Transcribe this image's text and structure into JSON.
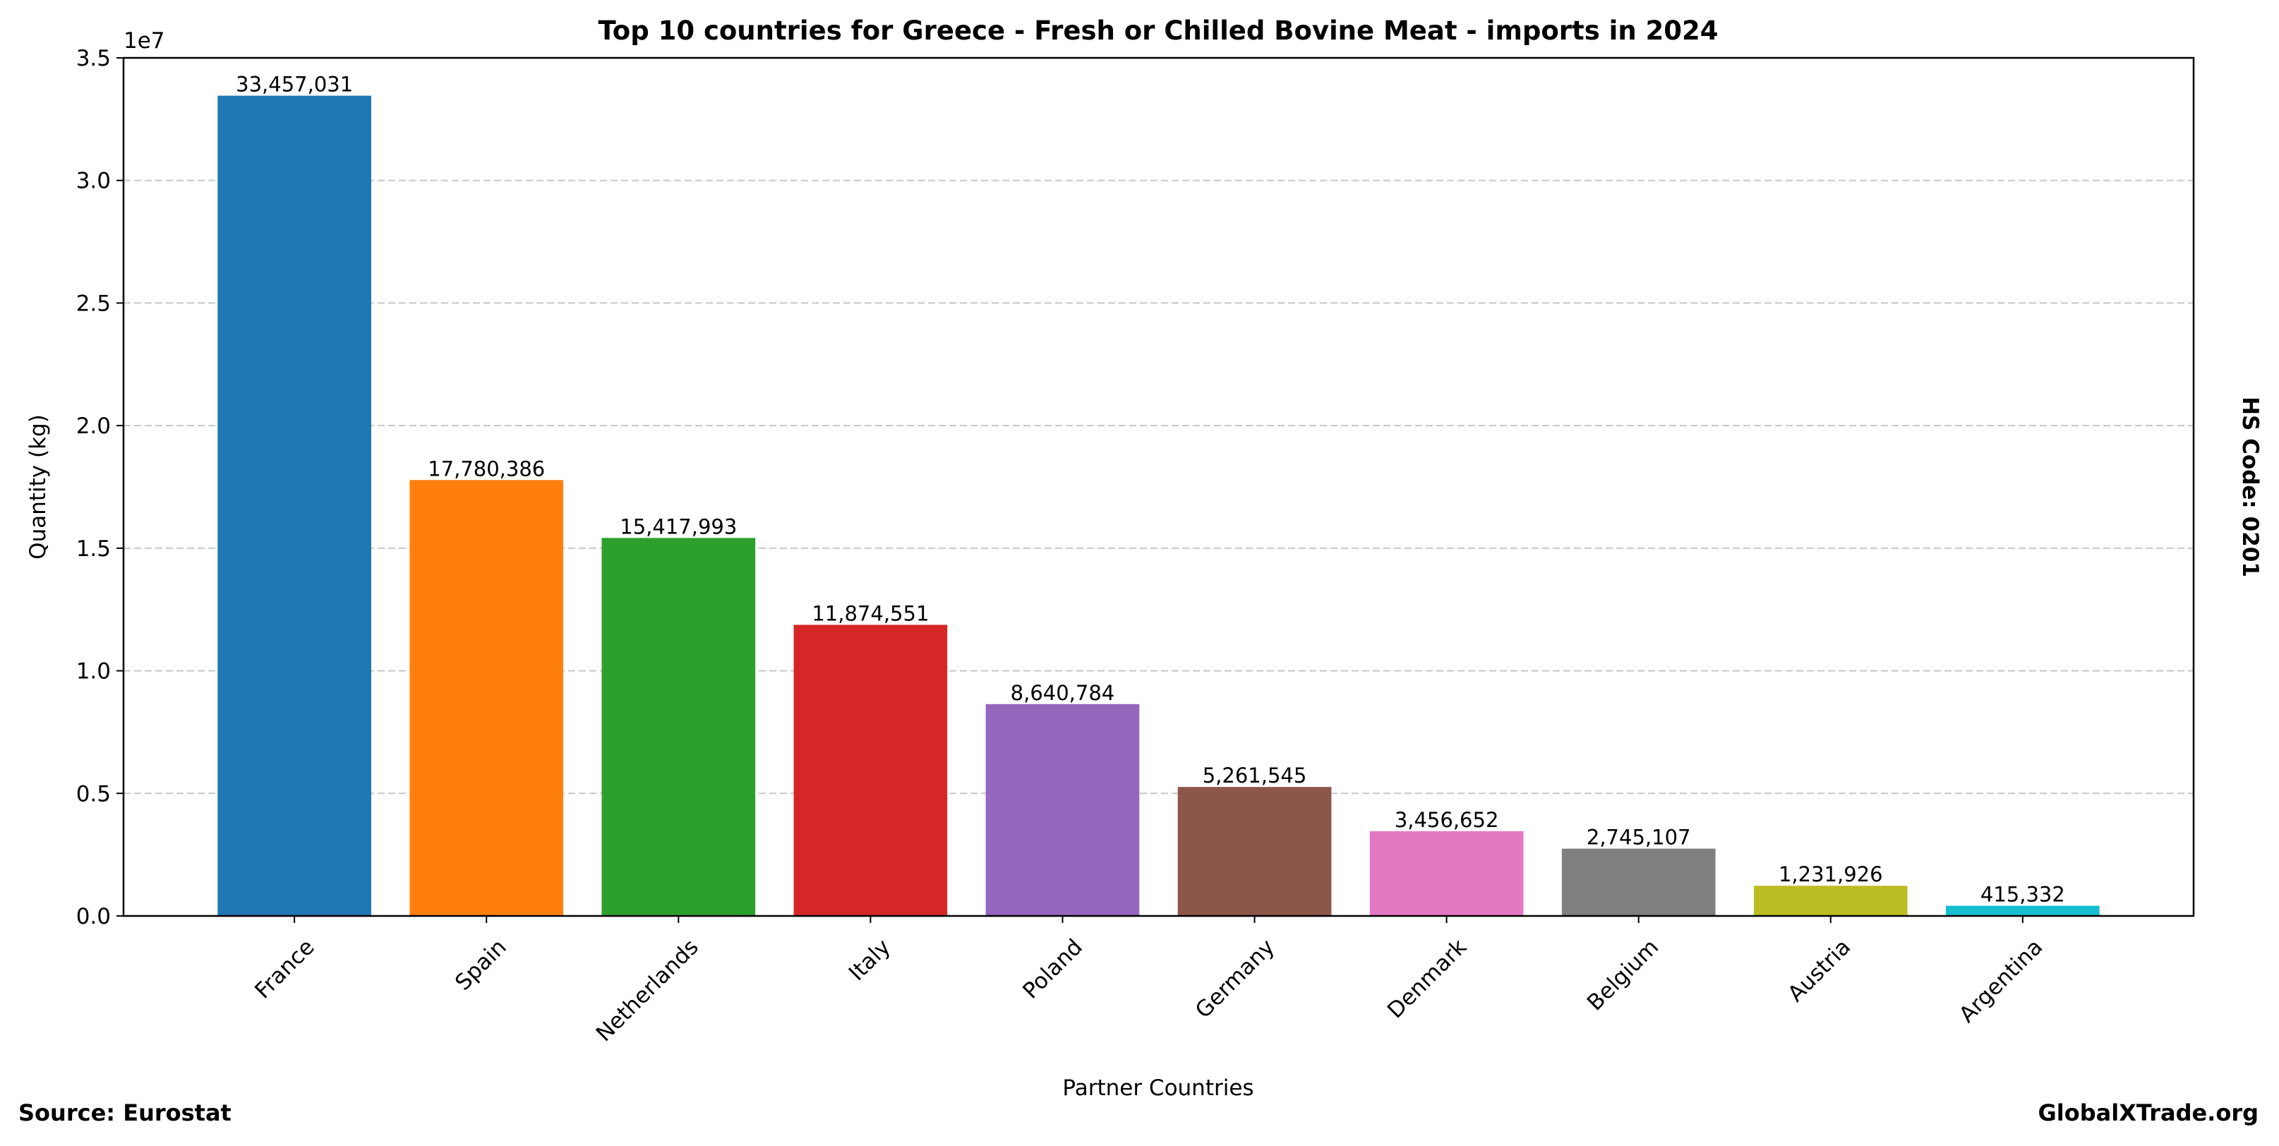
{
  "chart_data": {
    "type": "bar",
    "title": "Top 10 countries for Greece - Fresh or Chilled Bovine Meat - imports in 2024",
    "xlabel": "Partner Countries",
    "ylabel": "Quantity (kg)",
    "y_offset_label": "1e7",
    "ylim": [
      0,
      35000000
    ],
    "yticks": [
      0,
      5000000,
      10000000,
      15000000,
      20000000,
      25000000,
      30000000,
      35000000
    ],
    "ytick_labels": [
      "0.0",
      "0.5",
      "1.0",
      "1.5",
      "2.0",
      "2.5",
      "3.0",
      "3.5"
    ],
    "grid": "y-dashed",
    "categories": [
      "France",
      "Spain",
      "Netherlands",
      "Italy",
      "Poland",
      "Germany",
      "Denmark",
      "Belgium",
      "Austria",
      "Argentina"
    ],
    "values": [
      33457031,
      17780386,
      15417993,
      11874551,
      8640784,
      5261545,
      3456652,
      2745107,
      1231926,
      415332
    ],
    "value_labels": [
      "33,457,031",
      "17,780,386",
      "15,417,993",
      "11,874,551",
      "8,640,784",
      "5,261,545",
      "3,456,652",
      "2,745,107",
      "1,231,926",
      "415,332"
    ],
    "colors": [
      "#1f77b4",
      "#ff7f0e",
      "#2ca02c",
      "#d62728",
      "#9467bd",
      "#8c564b",
      "#e377c2",
      "#7f7f7f",
      "#bcbd22",
      "#17becf"
    ]
  },
  "annotations": {
    "source": "Source: Eurostat",
    "site": "GlobalXTrade.org",
    "hs_code": "HS Code: 0201"
  }
}
